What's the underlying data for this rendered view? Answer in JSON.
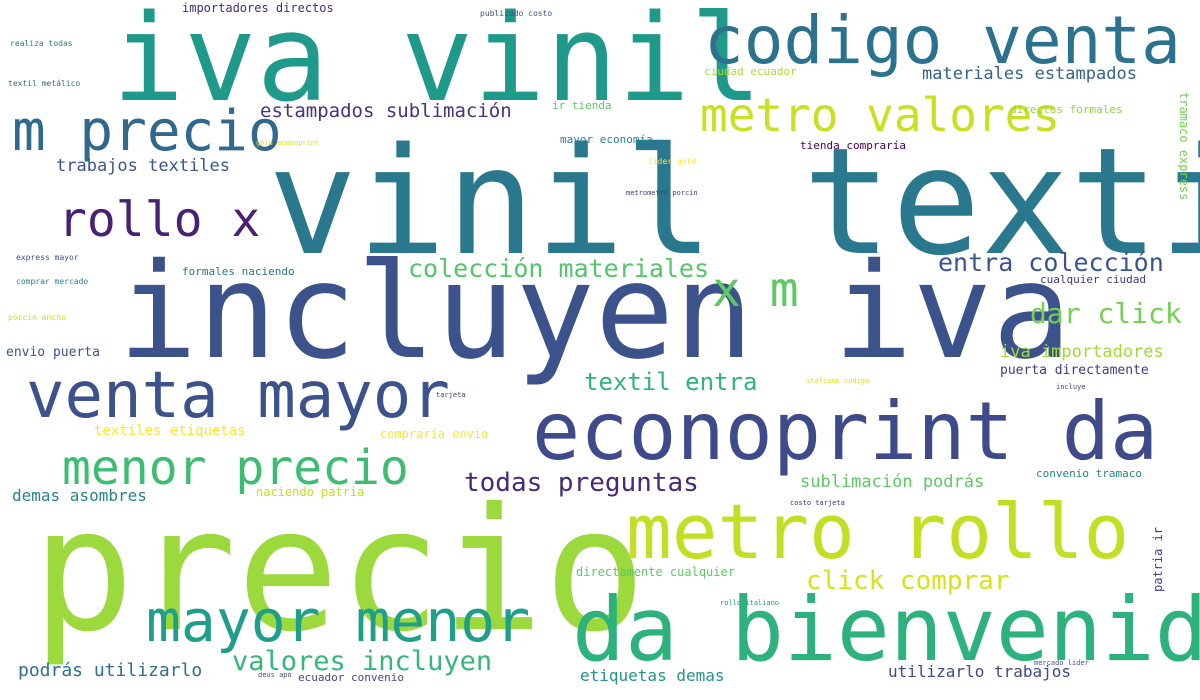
{
  "words": [
    {
      "text": "vinil textil",
      "color": "#2a788e"
    },
    {
      "text": "incluyen iva",
      "color": "#3b528b"
    },
    {
      "text": "iva vinil",
      "color": "#1f9a8a"
    },
    {
      "text": "precio",
      "color": "#9bd93c"
    },
    {
      "text": "codigo venta",
      "color": "#2c728e"
    },
    {
      "text": "econoprint da",
      "color": "#3e4a89"
    },
    {
      "text": "metro rollo",
      "color": "#c2df23"
    },
    {
      "text": "da bienvenida",
      "color": "#2db27d"
    },
    {
      "text": "venta mayor",
      "color": "#3b528b"
    },
    {
      "text": "m precio",
      "color": "#31688e"
    },
    {
      "text": "mayor menor",
      "color": "#1f9e89"
    },
    {
      "text": "menor precio",
      "color": "#3fbc73"
    },
    {
      "text": "rollo x",
      "color": "#482173"
    },
    {
      "text": "metro valores",
      "color": "#c8e020"
    },
    {
      "text": "x m",
      "color": "#5ec962"
    },
    {
      "text": "todas preguntas",
      "color": "#482878"
    },
    {
      "text": "colección materiales",
      "color": "#54c568"
    },
    {
      "text": "valores incluyen",
      "color": "#35b779"
    },
    {
      "text": "click comprar",
      "color": "#d8e219"
    },
    {
      "text": "entra colección",
      "color": "#39568c"
    },
    {
      "text": "dar click",
      "color": "#75d054"
    },
    {
      "text": "textil entra",
      "color": "#2fb47c"
    },
    {
      "text": "estampados sublimación",
      "color": "#46327e"
    },
    {
      "text": "materiales estampados",
      "color": "#33638d"
    },
    {
      "text": "trabajos textiles",
      "color": "#39568c"
    },
    {
      "text": "iva importadores",
      "color": "#a0da39"
    },
    {
      "text": "sublimación podrás",
      "color": "#5ec962"
    },
    {
      "text": "demas asombres",
      "color": "#25838e"
    },
    {
      "text": "podrás utilizarlo",
      "color": "#2e6e8e"
    },
    {
      "text": "utilizarlo trabajos",
      "color": "#3f4889"
    },
    {
      "text": "etiquetas demas",
      "color": "#1f968b"
    },
    {
      "text": "textiles etiquetas",
      "color": "#fde725"
    },
    {
      "text": "importadores directos",
      "color": "#482878"
    },
    {
      "text": "ir tienda",
      "color": "#5ec962"
    },
    {
      "text": "ciudad ecuador",
      "color": "#addc30"
    },
    {
      "text": "directos formales",
      "color": "#8fd744"
    },
    {
      "text": "mayor economía",
      "color": "#26828e"
    },
    {
      "text": "tienda compraría",
      "color": "#440154"
    },
    {
      "text": "formales naciendo",
      "color": "#2c728e"
    },
    {
      "text": "cualquier ciudad",
      "color": "#46337e"
    },
    {
      "text": "envio puerta",
      "color": "#3b528b"
    },
    {
      "text": "puerta directamente",
      "color": "#443a83"
    },
    {
      "text": "compraría envio",
      "color": "#fde725"
    },
    {
      "text": "naciendo patria",
      "color": "#c2df23"
    },
    {
      "text": "convenio tramaco",
      "color": "#25848e"
    },
    {
      "text": "directamente cualquier",
      "color": "#5ec962"
    },
    {
      "text": "ecuador convenio",
      "color": "#3e4989"
    },
    {
      "text": "tramaco express",
      "color": "#75d054"
    },
    {
      "text": "patria ir",
      "color": "#414487"
    },
    {
      "text": "publicado costo",
      "color": "#3b528b"
    },
    {
      "text": "realiza todas",
      "color": "#2a788e"
    },
    {
      "text": "textil metálico",
      "color": "#31688e"
    },
    {
      "text": "gold econoprint",
      "color": "#d2e21b"
    },
    {
      "text": "lider gold",
      "color": "#fde725"
    },
    {
      "text": "metrometro porcin",
      "color": "#443983"
    },
    {
      "text": "express mayor",
      "color": "#3b528b"
    },
    {
      "text": "comprar mercado",
      "color": "#26828e"
    },
    {
      "text": "porcin ancho",
      "color": "#c8e020"
    },
    {
      "text": "italiano codigo",
      "color": "#d8e219"
    },
    {
      "text": "incluye",
      "color": "#3e4989"
    },
    {
      "text": "tarjeta",
      "color": "#46337e"
    },
    {
      "text": "costo tarjeta",
      "color": "#482878"
    },
    {
      "text": "rollo italiano",
      "color": "#1f968b"
    },
    {
      "text": "mercado lider",
      "color": "#3b528b"
    },
    {
      "text": "deus apo",
      "color": "#3e4a89"
    }
  ]
}
